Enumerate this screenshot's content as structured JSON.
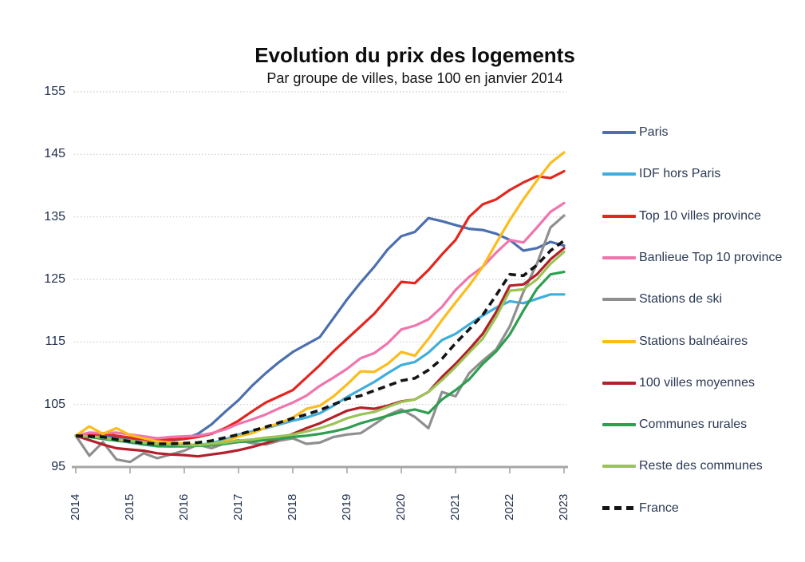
{
  "chart_data": {
    "type": "line",
    "title": "Evolution du prix des logements",
    "subtitle": "Par groupe de villes, base 100 en janvier 2014",
    "xlabel": "",
    "ylabel": "",
    "x_start": 2014,
    "x_step": 0.25,
    "xlim": [
      2014,
      2023.1
    ],
    "ylim": [
      95,
      155
    ],
    "grid": "horizontal-dotted",
    "legend_position": "right",
    "x_tick_labels": [
      "2014",
      "2015",
      "2016",
      "2017",
      "2018",
      "2019",
      "2020",
      "2021",
      "2022",
      "2023"
    ],
    "y_tick_labels": [
      "95",
      "105",
      "115",
      "125",
      "135",
      "145",
      "155"
    ],
    "y_ticks": [
      95,
      105,
      115,
      125,
      135,
      145,
      155
    ],
    "axis_color": "#a6a6a6",
    "gridline_color": "#d4d4d4",
    "text_color": "#22314f",
    "series": [
      {
        "name": "Paris",
        "color": "#4c6fae",
        "dashed": false,
        "values": [
          100,
          100.3,
          100.1,
          99.7,
          99.4,
          98.9,
          99,
          99.2,
          99.5,
          100.3,
          101.8,
          103.8,
          105.7,
          108,
          110,
          111.8,
          113.4,
          114.6,
          115.8,
          118.8,
          121.8,
          124.5,
          127,
          129.8,
          131.9,
          132.6,
          134.8,
          134.3,
          133.7,
          133.1,
          132.9,
          132.3,
          131.3,
          129.6,
          130,
          131,
          130.4
        ]
      },
      {
        "name": "IDF hors Paris",
        "color": "#3faedc",
        "dashed": false,
        "values": [
          100,
          99.9,
          99.7,
          99.3,
          98.9,
          98.6,
          98.3,
          98.3,
          98.4,
          98.5,
          98.8,
          99.4,
          100.2,
          100.7,
          101.2,
          101.8,
          102.4,
          102.9,
          103.6,
          104.8,
          106.2,
          107.4,
          108.6,
          110,
          111.3,
          111.8,
          113.3,
          115.3,
          116.3,
          117.8,
          119.2,
          120.5,
          121.5,
          121.2,
          121.9,
          122.6,
          122.6
        ]
      },
      {
        "name": "Top 10 villes province",
        "color": "#e3261f",
        "dashed": false,
        "values": [
          100,
          100.2,
          100.4,
          100,
          99.7,
          99.4,
          99.2,
          99.4,
          99.5,
          99.8,
          100.3,
          101.2,
          102.4,
          103.9,
          105.3,
          106.3,
          107.3,
          109.3,
          111.3,
          113.5,
          115.5,
          117.5,
          119.5,
          122,
          124.6,
          124.4,
          126.5,
          129,
          131.3,
          135,
          137,
          137.8,
          139.3,
          140.5,
          141.5,
          141.2,
          142.3
        ]
      },
      {
        "name": "Banlieue Top 10 province",
        "color": "#f075ad",
        "dashed": false,
        "values": [
          100,
          100.5,
          100.4,
          100.5,
          100.2,
          99.9,
          99.6,
          99.8,
          99.9,
          100,
          100.4,
          101,
          101.9,
          102.6,
          103.4,
          104.4,
          105.3,
          106.4,
          108,
          109.3,
          110.7,
          112.4,
          113.2,
          114.8,
          117,
          117.6,
          118.6,
          120.6,
          123.3,
          125.4,
          127,
          129.3,
          131.3,
          130.9,
          133.3,
          135.8,
          137.2
        ]
      },
      {
        "name": "Stations de ski",
        "color": "#8f8f8f",
        "dashed": false,
        "values": [
          100,
          96.8,
          99,
          96.2,
          95.8,
          97.2,
          96.4,
          97,
          97.6,
          98.6,
          98,
          98.8,
          99.3,
          98.8,
          98.6,
          99.2,
          99.6,
          98.7,
          98.9,
          99.8,
          100.2,
          100.4,
          101.8,
          103.3,
          104.2,
          103,
          101.2,
          107,
          106.3,
          110,
          112,
          113.8,
          117.5,
          123,
          127.5,
          133.3,
          135.2
        ]
      },
      {
        "name": "Stations balnéaires",
        "color": "#fbbc1c",
        "dashed": false,
        "values": [
          100,
          101.5,
          100.3,
          101.2,
          100.1,
          99.6,
          99.1,
          98.9,
          98.7,
          98.5,
          98.7,
          99.1,
          99.9,
          100.4,
          101.3,
          102,
          102.9,
          104.3,
          104.8,
          106.3,
          108.2,
          110.3,
          110.2,
          111.5,
          113.4,
          112.8,
          115.5,
          118.5,
          121.3,
          124,
          127,
          130.8,
          134.5,
          137.8,
          140.8,
          143.6,
          145.3
        ]
      },
      {
        "name": "100 villes moyennes",
        "color": "#b2202a",
        "dashed": false,
        "values": [
          100,
          99.3,
          98.6,
          98,
          97.8,
          97.6,
          97.2,
          97,
          96.9,
          96.7,
          97,
          97.3,
          97.7,
          98.2,
          98.8,
          99.5,
          100.3,
          101.2,
          102,
          103,
          104,
          104.5,
          104.3,
          104.8,
          105.5,
          105.8,
          107,
          109.4,
          111.5,
          113.8,
          116.3,
          119.8,
          124,
          124.2,
          125.8,
          128.2,
          130
        ]
      },
      {
        "name": "Communes rurales",
        "color": "#2e9e50",
        "dashed": false,
        "values": [
          100,
          99.8,
          99.5,
          99.2,
          99,
          98.6,
          98.4,
          98.3,
          98.3,
          98.4,
          98.5,
          98.7,
          99,
          99.1,
          99.3,
          99.5,
          99.8,
          100,
          100.3,
          100.7,
          101.2,
          102,
          102.6,
          103.2,
          103.8,
          104.2,
          103.6,
          105.8,
          107.3,
          109,
          111.5,
          113.5,
          116.2,
          120,
          123.5,
          125.8,
          126.2
        ]
      },
      {
        "name": "Reste des communes",
        "color": "#9bc356",
        "dashed": false,
        "values": [
          100,
          99.9,
          99.7,
          99.4,
          99.2,
          98.9,
          98.7,
          98.6,
          98.5,
          98.5,
          98.7,
          98.9,
          99.2,
          99.4,
          99.7,
          99.9,
          100.2,
          100.7,
          101.2,
          101.9,
          102.8,
          103.4,
          103.8,
          104.6,
          105.4,
          105.8,
          107,
          108.9,
          111,
          113.3,
          115.5,
          119,
          123.2,
          123.4,
          125,
          127.5,
          129.4
        ]
      },
      {
        "name": "France",
        "color": "#141414",
        "dashed": true,
        "values": [
          100,
          99.9,
          99.8,
          99.4,
          99.1,
          98.8,
          98.7,
          98.7,
          98.8,
          98.9,
          99.2,
          99.7,
          100.2,
          100.8,
          101.4,
          102.1,
          102.8,
          103.4,
          104.1,
          105,
          105.9,
          106.4,
          107.2,
          108,
          108.8,
          109.2,
          110.5,
          112.3,
          114.8,
          117,
          119.3,
          122.5,
          125.8,
          125.6,
          127.3,
          129.6,
          131.2
        ]
      }
    ]
  }
}
